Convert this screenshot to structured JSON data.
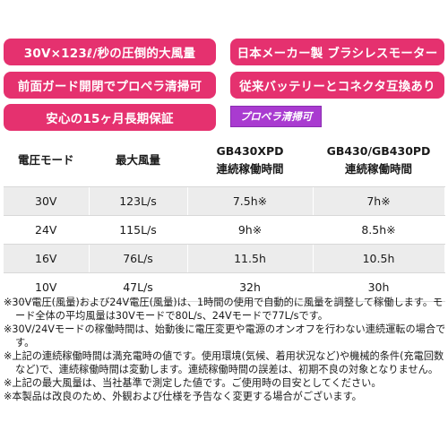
{
  "feature_pills": [
    "30V×123ℓ/秒の圧倒的大風量",
    "日本メーカー製 ブラシレスモーター",
    "前面ガード開閉でプロペラ清掃可",
    "従来バッテリーとコネクタ互換あり",
    "安心の15ヶ月長期保証"
  ],
  "badge": "プロペラ清掃可",
  "colors": {
    "pill": "#e5316f",
    "badge": "#a93bd0",
    "row_shade": "#ececec"
  },
  "table": {
    "headers": [
      "電圧モード",
      "最大風量",
      "GB430XPD\n連続稼働時間",
      "GB430/GB430PD\n連続稼働時間"
    ],
    "rows": [
      [
        "30V",
        "123L/s",
        "7.5h※",
        "7h※"
      ],
      [
        "24V",
        "115L/s",
        "9h※",
        "8.5h※"
      ],
      [
        "16V",
        "76L/s",
        "11.5h",
        "10.5h"
      ],
      [
        "10V",
        "47L/s",
        "32h",
        "30h"
      ]
    ]
  },
  "notes": [
    "※30V電圧(風量)および24V電圧(風量)は、1時間の使用で自動的に風量を調整して稼働します。モード全体の平均風量は30Vモードで80L/s、24Vモードで77L/sです。",
    "※30V/24Vモードの稼働時間は、始動後に電圧変更や電源のオンオフを行わない連続運転の場合です。",
    "※上記の連続稼働時間は満充電時の値です。使用環境(気候、着用状況など)や機械的条件(充電回数など)で、連続稼働時間は変動します。連続稼働時間の誤差は、初期不良の対象となりません。",
    "※上記の最大風量は、当社基準で測定した値です。ご使用時の目安としてください。",
    "※本製品は改良のため、外観および仕様を予告なく変更する場合がございます。"
  ]
}
